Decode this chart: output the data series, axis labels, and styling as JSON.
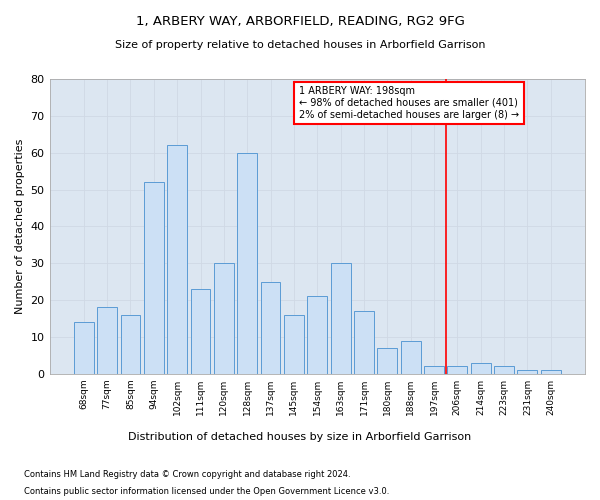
{
  "title": "1, ARBERY WAY, ARBORFIELD, READING, RG2 9FG",
  "subtitle": "Size of property relative to detached houses in Arborfield Garrison",
  "xlabel": "Distribution of detached houses by size in Arborfield Garrison",
  "ylabel": "Number of detached properties",
  "footnote1": "Contains HM Land Registry data © Crown copyright and database right 2024.",
  "footnote2": "Contains public sector information licensed under the Open Government Licence v3.0.",
  "bar_labels": [
    "68sqm",
    "77sqm",
    "85sqm",
    "94sqm",
    "102sqm",
    "111sqm",
    "120sqm",
    "128sqm",
    "137sqm",
    "145sqm",
    "154sqm",
    "163sqm",
    "171sqm",
    "180sqm",
    "188sqm",
    "197sqm",
    "206sqm",
    "214sqm",
    "223sqm",
    "231sqm",
    "240sqm"
  ],
  "bar_values": [
    14,
    18,
    16,
    52,
    62,
    23,
    30,
    60,
    25,
    16,
    21,
    30,
    17,
    7,
    9,
    2,
    2,
    3,
    2,
    1,
    1
  ],
  "bar_color": "#cce0f5",
  "bar_edge_color": "#5b9bd5",
  "grid_color": "#d0d8e4",
  "bg_color": "#dce6f1",
  "vline_color": "red",
  "annotation_text": "1 ARBERY WAY: 198sqm\n← 98% of detached houses are smaller (401)\n2% of semi-detached houses are larger (8) →",
  "ylim": [
    0,
    80
  ],
  "yticks": [
    0,
    10,
    20,
    30,
    40,
    50,
    60,
    70,
    80
  ]
}
